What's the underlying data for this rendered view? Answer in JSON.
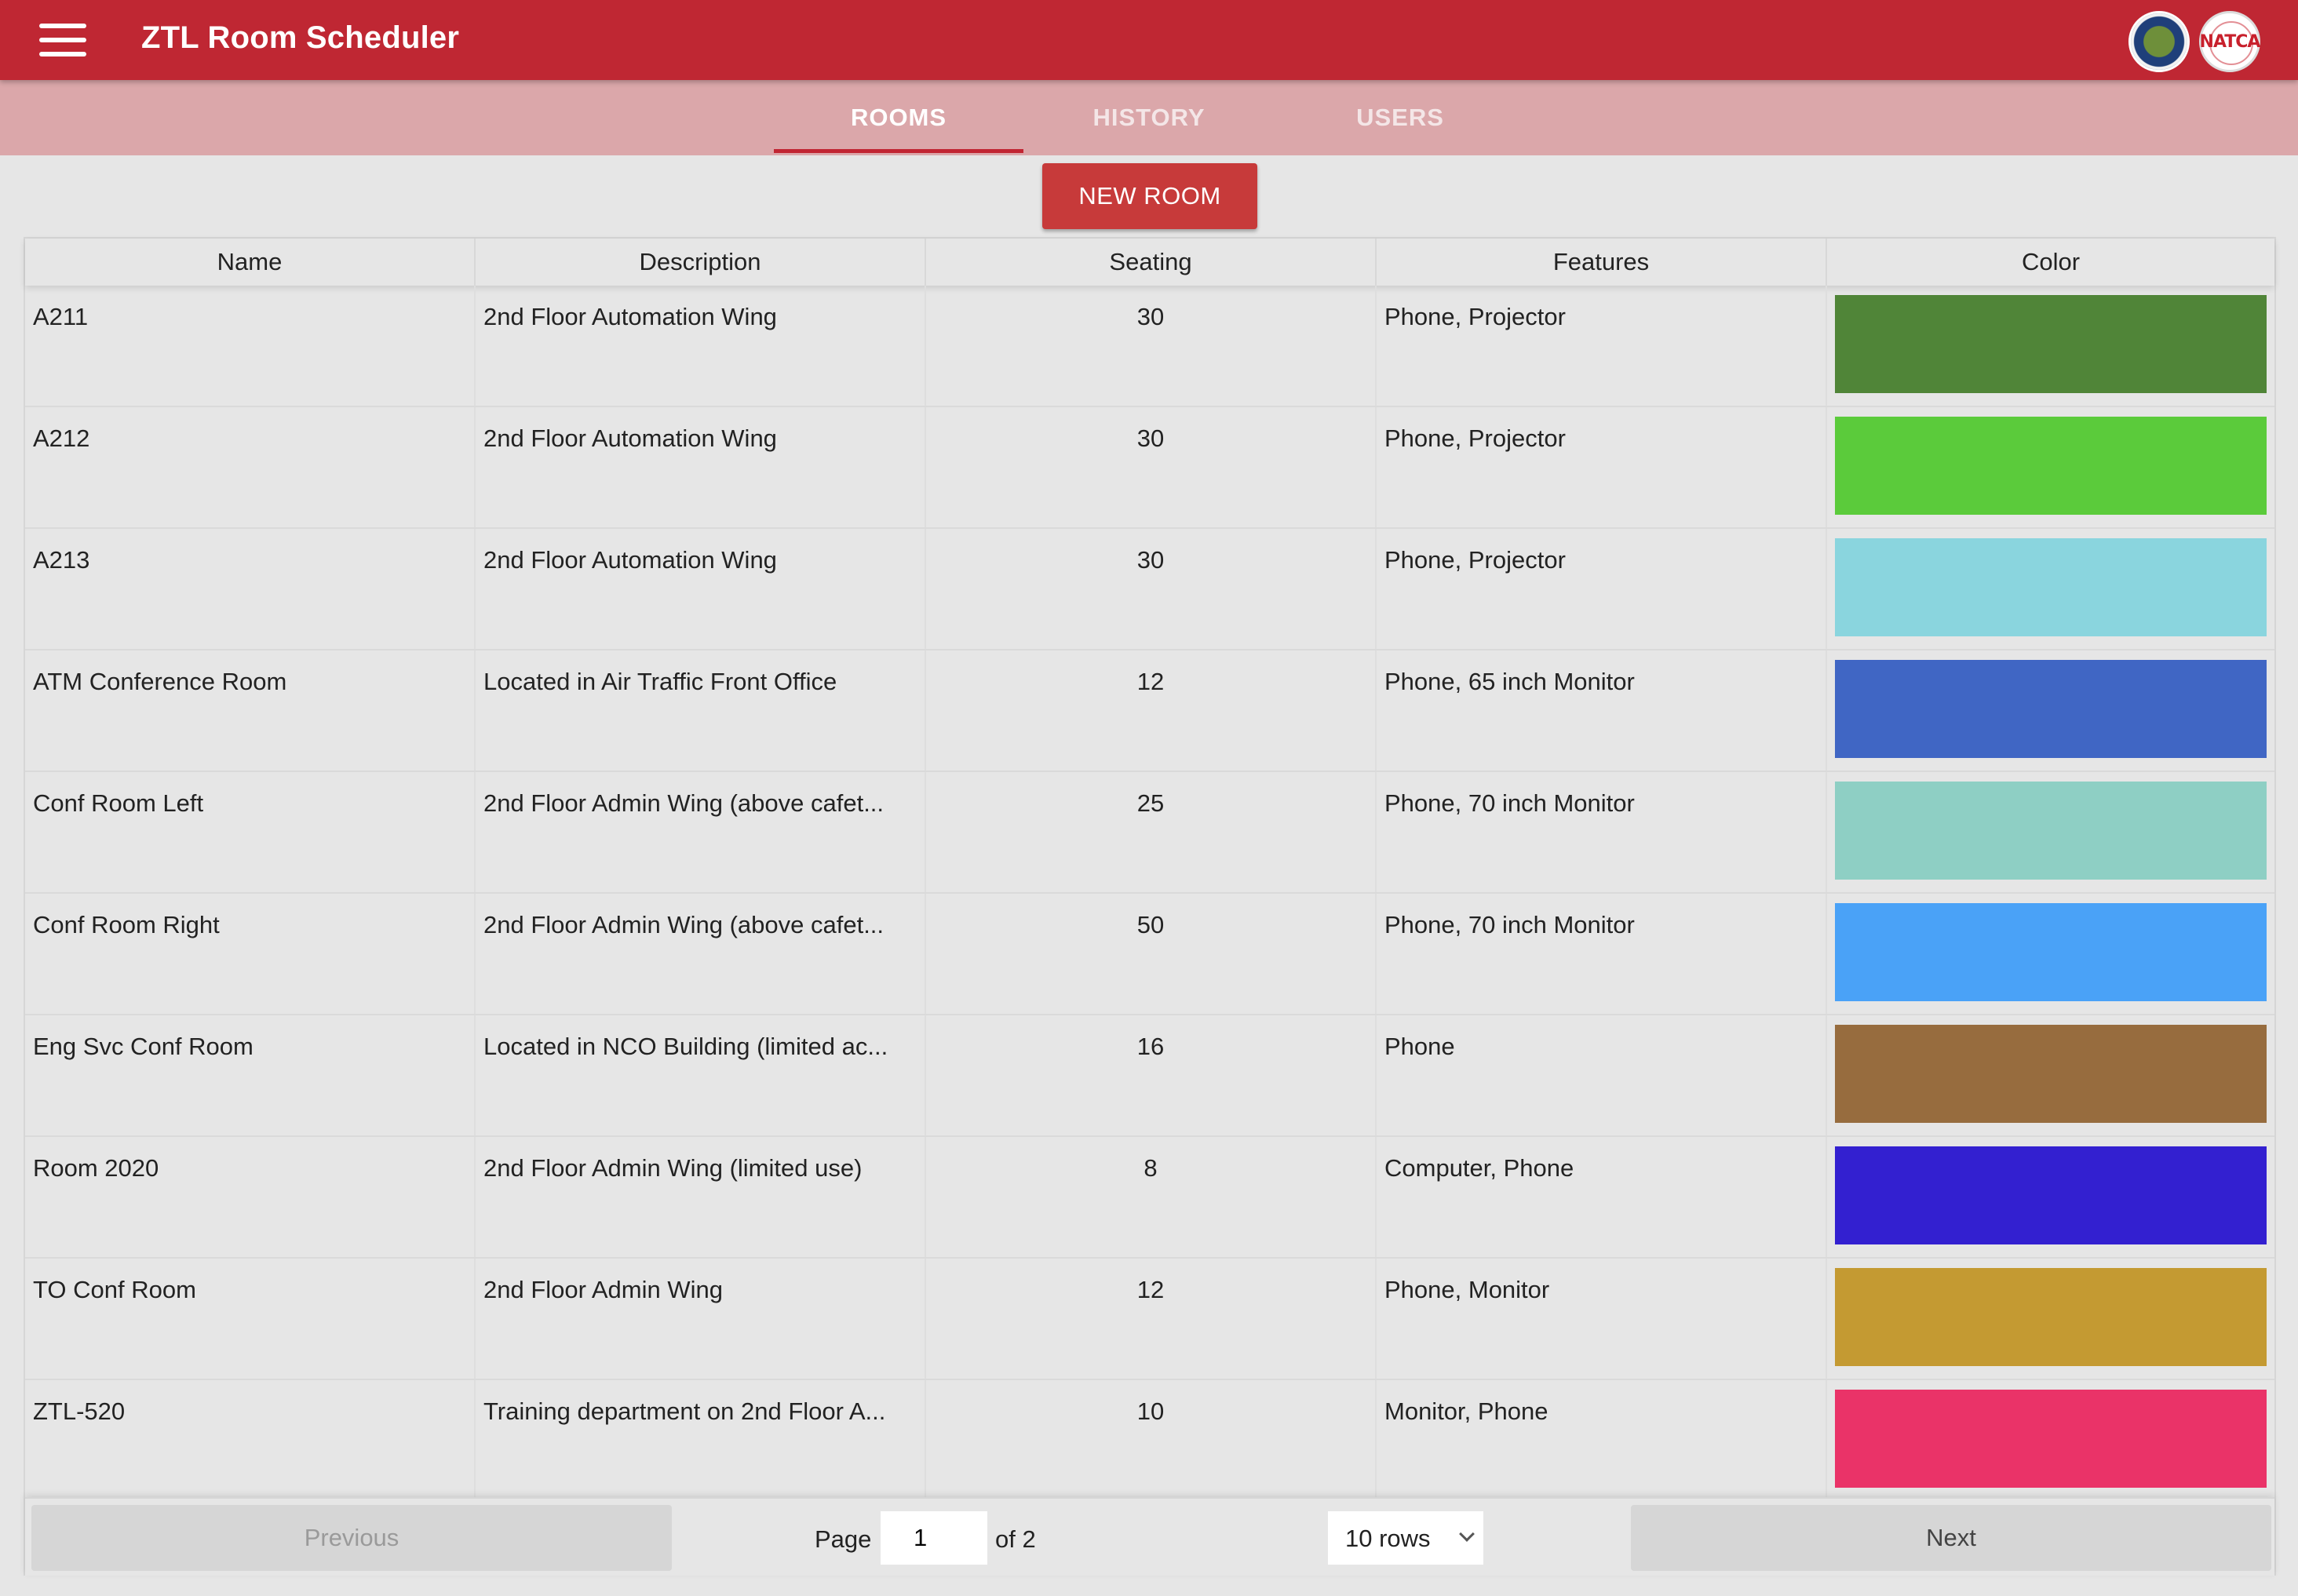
{
  "app": {
    "title": "ZTL Room Scheduler",
    "logos": [
      "faa-seal-icon",
      "natca-logo-icon"
    ],
    "brand_color": "#bf2733"
  },
  "tabs": [
    {
      "label": "ROOMS",
      "active": true
    },
    {
      "label": "HISTORY",
      "active": false
    },
    {
      "label": "USERS",
      "active": false
    }
  ],
  "toolbar": {
    "new_room_label": "NEW ROOM"
  },
  "table": {
    "columns": [
      "Name",
      "Description",
      "Seating",
      "Features",
      "Color"
    ],
    "rows": [
      {
        "name": "A211",
        "description": "2nd Floor Automation Wing",
        "seating": "30",
        "features": "Phone, Projector",
        "color": "#508538"
      },
      {
        "name": "A212",
        "description": "2nd Floor Automation Wing",
        "seating": "30",
        "features": "Phone, Projector",
        "color": "#5bcb3b"
      },
      {
        "name": "A213",
        "description": "2nd Floor Automation Wing",
        "seating": "30",
        "features": "Phone, Projector",
        "color": "#8ad5de"
      },
      {
        "name": "ATM Conference Room",
        "description": "Located in Air Traffic Front Office",
        "seating": "12",
        "features": "Phone, 65 inch Monitor",
        "color": "#4066c4"
      },
      {
        "name": "Conf Room Left",
        "description": "2nd Floor Admin Wing (above cafet...",
        "seating": "25",
        "features": "Phone, 70 inch Monitor",
        "color": "#8ecfc4"
      },
      {
        "name": "Conf Room Right",
        "description": "2nd Floor Admin Wing (above cafet...",
        "seating": "50",
        "features": "Phone, 70 inch Monitor",
        "color": "#4aa2f7"
      },
      {
        "name": "Eng Svc Conf Room",
        "description": "Located in NCO Building (limited ac...",
        "seating": "16",
        "features": "Phone",
        "color": "#976c3e"
      },
      {
        "name": "Room 2020",
        "description": "2nd Floor Admin Wing (limited use)",
        "seating": "8",
        "features": "Computer, Phone",
        "color": "#3320d0"
      },
      {
        "name": "TO Conf Room",
        "description": "2nd Floor Admin Wing",
        "seating": "12",
        "features": "Phone, Monitor",
        "color": "#c49a32"
      },
      {
        "name": "ZTL-520",
        "description": "Training department on 2nd Floor A...",
        "seating": "10",
        "features": "Monitor, Phone",
        "color": "#ea3368"
      }
    ]
  },
  "pagination": {
    "previous_label": "Previous",
    "next_label": "Next",
    "page_label": "Page",
    "current_page": "1",
    "of_label": "of 2",
    "rows_option": "10 rows"
  }
}
